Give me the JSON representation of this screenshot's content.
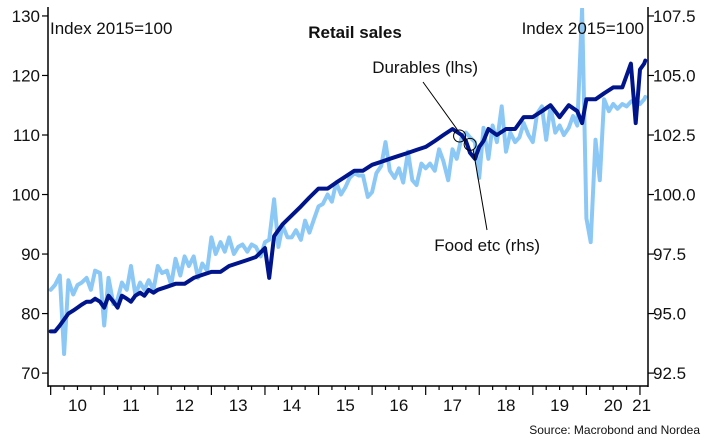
{
  "chart_data": {
    "type": "line",
    "title": "Retail sales",
    "left_axis_label": "Index 2015=100",
    "right_axis_label": "Index 2015=100",
    "source": "Source: Macrobond and Nordea",
    "x_ticks": [
      "10",
      "11",
      "12",
      "13",
      "14",
      "15",
      "16",
      "17",
      "18",
      "19",
      "20",
      "21"
    ],
    "x_range": [
      2009.95,
      2021.15
    ],
    "left_axis": {
      "min": 68,
      "max": 131,
      "ticks": [
        70,
        80,
        90,
        100,
        110,
        120,
        130
      ]
    },
    "right_axis": {
      "min": 92,
      "max": 107.75,
      "ticks": [
        "92.5",
        "95.0",
        "97.5",
        "100.0",
        "102.5",
        "105.0",
        "107.5"
      ]
    },
    "annotations": [
      {
        "text": "Durables (lhs)",
        "series": "Durables (lhs)"
      },
      {
        "text": "Food etc (rhs)",
        "series": "Food etc (rhs)"
      }
    ],
    "colors": {
      "durables": "#00148c",
      "food": "#8cc8f5",
      "axis": "#000000"
    },
    "series": [
      {
        "name": "Durables (lhs)",
        "axis": "left",
        "color": "#00148c",
        "x": [
          2010.0,
          2010.08,
          2010.17,
          2010.25,
          2010.33,
          2010.42,
          2010.5,
          2010.58,
          2010.67,
          2010.75,
          2010.83,
          2010.92,
          2011.0,
          2011.08,
          2011.17,
          2011.25,
          2011.33,
          2011.42,
          2011.5,
          2011.58,
          2011.67,
          2011.75,
          2011.83,
          2011.92,
          2012.0,
          2012.17,
          2012.33,
          2012.5,
          2012.67,
          2012.83,
          2013.0,
          2013.17,
          2013.33,
          2013.5,
          2013.67,
          2013.83,
          2014.0,
          2014.08,
          2014.17,
          2014.33,
          2014.5,
          2014.67,
          2014.83,
          2015.0,
          2015.17,
          2015.33,
          2015.5,
          2015.67,
          2015.83,
          2016.0,
          2016.17,
          2016.33,
          2016.5,
          2016.67,
          2016.83,
          2017.0,
          2017.17,
          2017.33,
          2017.5,
          2017.67,
          2017.75,
          2017.83,
          2017.92,
          2018.0,
          2018.08,
          2018.17,
          2018.33,
          2018.5,
          2018.67,
          2018.83,
          2019.0,
          2019.17,
          2019.33,
          2019.5,
          2019.67,
          2019.83,
          2019.92,
          2020.0,
          2020.17,
          2020.33,
          2020.5,
          2020.67,
          2020.75,
          2020.83,
          2020.92,
          2021.0,
          2021.08,
          2021.1
        ],
        "values": [
          77,
          77,
          78,
          79,
          80,
          80.5,
          81,
          81.5,
          82,
          82,
          82.5,
          82,
          81,
          83,
          82,
          81,
          83,
          82.5,
          82,
          83,
          83.5,
          83,
          84,
          83.5,
          84,
          84.5,
          85,
          85,
          86,
          86.5,
          87,
          87,
          88,
          88.5,
          89,
          89.5,
          91,
          86,
          93,
          95,
          96.5,
          98,
          99.5,
          101,
          101,
          102,
          103,
          104,
          104,
          105,
          105.5,
          106,
          106.5,
          107,
          107.5,
          108,
          109,
          110,
          111,
          110,
          109,
          107,
          106,
          108,
          109,
          111,
          110,
          111,
          111,
          113,
          113,
          114,
          115,
          113,
          115,
          114,
          112,
          116,
          116,
          117,
          118,
          118,
          120,
          122,
          112,
          121,
          122,
          122.5
        ]
      },
      {
        "name": "Food etc (rhs)",
        "axis": "right",
        "color": "#8cc8f5",
        "x": [
          2010.0,
          2010.08,
          2010.17,
          2010.25,
          2010.33,
          2010.42,
          2010.5,
          2010.58,
          2010.67,
          2010.75,
          2010.83,
          2010.92,
          2011.0,
          2011.08,
          2011.17,
          2011.25,
          2011.33,
          2011.42,
          2011.5,
          2011.58,
          2011.67,
          2011.75,
          2011.83,
          2011.92,
          2012.0,
          2012.08,
          2012.17,
          2012.25,
          2012.33,
          2012.42,
          2012.5,
          2012.58,
          2012.67,
          2012.75,
          2012.83,
          2012.92,
          2013.0,
          2013.08,
          2013.17,
          2013.25,
          2013.33,
          2013.42,
          2013.5,
          2013.58,
          2013.67,
          2013.75,
          2013.83,
          2013.92,
          2014.0,
          2014.08,
          2014.17,
          2014.25,
          2014.33,
          2014.42,
          2014.5,
          2014.58,
          2014.67,
          2014.75,
          2014.83,
          2014.92,
          2015.0,
          2015.08,
          2015.17,
          2015.25,
          2015.33,
          2015.42,
          2015.5,
          2015.58,
          2015.67,
          2015.75,
          2015.83,
          2015.92,
          2016.0,
          2016.08,
          2016.17,
          2016.25,
          2016.33,
          2016.42,
          2016.5,
          2016.58,
          2016.67,
          2016.75,
          2016.83,
          2016.92,
          2017.0,
          2017.08,
          2017.17,
          2017.25,
          2017.33,
          2017.42,
          2017.5,
          2017.58,
          2017.67,
          2017.75,
          2017.83,
          2017.92,
          2018.0,
          2018.08,
          2018.17,
          2018.25,
          2018.33,
          2018.42,
          2018.5,
          2018.58,
          2018.67,
          2018.75,
          2018.83,
          2018.92,
          2019.0,
          2019.08,
          2019.17,
          2019.25,
          2019.33,
          2019.42,
          2019.5,
          2019.58,
          2019.67,
          2019.75,
          2019.83,
          2019.92,
          2020.0,
          2020.08,
          2020.17,
          2020.25,
          2020.33,
          2020.42,
          2020.5,
          2020.58,
          2020.67,
          2020.75,
          2020.83,
          2020.92,
          2021.0,
          2021.08,
          2021.1
        ],
        "values": [
          96,
          96.2,
          96.6,
          93.3,
          96.4,
          95.8,
          96.2,
          96.3,
          96.5,
          96,
          96.8,
          96.7,
          94.5,
          96.5,
          95.4,
          95.6,
          96.3,
          96,
          97,
          95.8,
          96.3,
          96,
          96.4,
          96,
          97,
          96.7,
          96.8,
          96.2,
          97.3,
          96.6,
          97.4,
          97,
          97.4,
          96.5,
          97.1,
          96.8,
          98.2,
          97.5,
          98,
          97.6,
          98.2,
          97.5,
          97.8,
          97.9,
          97.6,
          97.9,
          97.8,
          97.4,
          98,
          98.1,
          99.8,
          97.8,
          98.7,
          98.2,
          98.2,
          98.5,
          98.1,
          98.9,
          98.4,
          99,
          99.5,
          99.6,
          100,
          99.7,
          100.5,
          100,
          100.3,
          100.7,
          100.9,
          100.8,
          100.8,
          99.9,
          100.1,
          100.9,
          101.2,
          102.2,
          101,
          100.7,
          101.1,
          100.5,
          101.8,
          100.6,
          100.4,
          101.3,
          101.1,
          101.3,
          101,
          101.9,
          101.4,
          100.6,
          101.9,
          101.5,
          102.4,
          102.6,
          102.4,
          102.2,
          100.7,
          102.8,
          101.5,
          102.9,
          102.2,
          103.7,
          101.8,
          102.6,
          102.2,
          102.4,
          103,
          102.5,
          102.2,
          103.4,
          103.7,
          102.3,
          103.7,
          102.6,
          102.9,
          102.5,
          102.8,
          103.3,
          102.9,
          107.8,
          99,
          98,
          102.3,
          100.6,
          104,
          103.5,
          103.8,
          103.6,
          103.8,
          103.7,
          103.9,
          104,
          103.8,
          104,
          104.1
        ]
      }
    ]
  }
}
